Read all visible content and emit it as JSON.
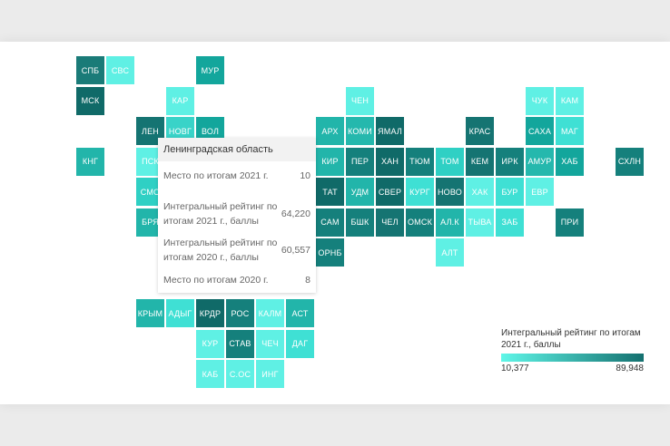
{
  "tiles": [
    {
      "label": "СПБ",
      "col": 0,
      "row": 0,
      "color": "#1a7b78"
    },
    {
      "label": "СВС",
      "col": 1,
      "row": 0,
      "color": "#5ff0e4"
    },
    {
      "label": "МУР",
      "col": 4,
      "row": 0,
      "color": "#13a69c"
    },
    {
      "label": "МСК",
      "col": 0,
      "row": 1,
      "color": "#106a68"
    },
    {
      "label": "КАР",
      "col": 3,
      "row": 1,
      "color": "#5ff0e4"
    },
    {
      "label": "ЧЕН",
      "col": 9,
      "row": 1,
      "color": "#5ff0e4"
    },
    {
      "label": "ЧУК",
      "col": 15,
      "row": 1,
      "color": "#5ff0e4"
    },
    {
      "label": "КАМ",
      "col": 16,
      "row": 1,
      "color": "#5ff0e4"
    },
    {
      "label": "ЛЕН",
      "col": 2,
      "row": 2,
      "color": "#157472"
    },
    {
      "label": "НОВГ",
      "col": 3,
      "row": 2,
      "color": "#39d3c8"
    },
    {
      "label": "ВОЛ",
      "col": 4,
      "row": 2,
      "color": "#13a69c"
    },
    {
      "label": "АРХ",
      "col": 8,
      "row": 2,
      "color": "#22b5aa"
    },
    {
      "label": "КОМИ",
      "col": 9,
      "row": 2,
      "color": "#25b8ad"
    },
    {
      "label": "ЯМАЛ",
      "col": 10,
      "row": 2,
      "color": "#106a68"
    },
    {
      "label": "КРАС",
      "col": 13,
      "row": 2,
      "color": "#157472"
    },
    {
      "label": "САХА",
      "col": 15,
      "row": 2,
      "color": "#13a69c"
    },
    {
      "label": "МАГ",
      "col": 16,
      "row": 2,
      "color": "#3fe0d4"
    },
    {
      "label": "КНГ",
      "col": 0,
      "row": 3,
      "color": "#22b5aa"
    },
    {
      "label": "ПСК",
      "col": 2,
      "row": 3,
      "color": "#5ff0e4"
    },
    {
      "label": "КИР",
      "col": 8,
      "row": 3,
      "color": "#22b5aa"
    },
    {
      "label": "ПЕР",
      "col": 9,
      "row": 3,
      "color": "#15807c"
    },
    {
      "label": "ХАН",
      "col": 10,
      "row": 3,
      "color": "#106a68"
    },
    {
      "label": "ТЮМ",
      "col": 11,
      "row": 3,
      "color": "#15807c"
    },
    {
      "label": "ТОМ",
      "col": 12,
      "row": 3,
      "color": "#2fd0c4"
    },
    {
      "label": "КЕМ",
      "col": 13,
      "row": 3,
      "color": "#157472"
    },
    {
      "label": "ИРК",
      "col": 14,
      "row": 3,
      "color": "#15807c"
    },
    {
      "label": "АМУР",
      "col": 15,
      "row": 3,
      "color": "#25b8ad"
    },
    {
      "label": "ХАБ",
      "col": 16,
      "row": 3,
      "color": "#13a69c"
    },
    {
      "label": "СХЛН",
      "col": 18,
      "row": 3,
      "color": "#15807c"
    },
    {
      "label": "СМО",
      "col": 2,
      "row": 4,
      "color": "#2fd0c4"
    },
    {
      "label": "ТАТ",
      "col": 8,
      "row": 4,
      "color": "#106a68"
    },
    {
      "label": "УДМ",
      "col": 9,
      "row": 4,
      "color": "#22b5aa"
    },
    {
      "label": "СВЕР",
      "col": 10,
      "row": 4,
      "color": "#106a68"
    },
    {
      "label": "КУРГ",
      "col": 11,
      "row": 4,
      "color": "#3fe0d4"
    },
    {
      "label": "НОВО",
      "col": 12,
      "row": 4,
      "color": "#157472"
    },
    {
      "label": "ХАК",
      "col": 13,
      "row": 4,
      "color": "#5ff0e4"
    },
    {
      "label": "БУР",
      "col": 14,
      "row": 4,
      "color": "#3fe0d4"
    },
    {
      "label": "ЕВР",
      "col": 15,
      "row": 4,
      "color": "#5ff0e4"
    },
    {
      "label": "БРЯ",
      "col": 2,
      "row": 5,
      "color": "#22b5aa"
    },
    {
      "label": "САМ",
      "col": 8,
      "row": 5,
      "color": "#15807c"
    },
    {
      "label": "БШК",
      "col": 9,
      "row": 5,
      "color": "#15807c"
    },
    {
      "label": "ЧЕЛ",
      "col": 10,
      "row": 5,
      "color": "#157472"
    },
    {
      "label": "ОМСК",
      "col": 11,
      "row": 5,
      "color": "#15807c"
    },
    {
      "label": "АЛ.К",
      "col": 12,
      "row": 5,
      "color": "#22b5aa"
    },
    {
      "label": "ТЫВА",
      "col": 13,
      "row": 5,
      "color": "#5ff0e4"
    },
    {
      "label": "ЗАБ",
      "col": 14,
      "row": 5,
      "color": "#3fe0d4"
    },
    {
      "label": "ПРИ",
      "col": 16,
      "row": 5,
      "color": "#15807c"
    },
    {
      "label": "ОРНБ",
      "col": 8,
      "row": 6,
      "color": "#15807c"
    },
    {
      "label": "АЛТ",
      "col": 12,
      "row": 6,
      "color": "#5ff0e4"
    },
    {
      "label": "КРЫМ",
      "col": 2,
      "row": 8,
      "color": "#22b5aa"
    },
    {
      "label": "АДЫГ",
      "col": 3,
      "row": 8,
      "color": "#3fe0d4"
    },
    {
      "label": "КРДР",
      "col": 4,
      "row": 8,
      "color": "#106a68"
    },
    {
      "label": "РОС",
      "col": 5,
      "row": 8,
      "color": "#15807c"
    },
    {
      "label": "КАЛМ",
      "col": 6,
      "row": 8,
      "color": "#5ff0e4"
    },
    {
      "label": "АСТ",
      "col": 7,
      "row": 8,
      "color": "#22b5aa"
    },
    {
      "label": "КУР",
      "col": 4,
      "row": 9,
      "color": "#5ff0e4"
    },
    {
      "label": "СТАВ",
      "col": 5,
      "row": 9,
      "color": "#15807c"
    },
    {
      "label": "ЧЕЧ",
      "col": 6,
      "row": 9,
      "color": "#5ff0e4"
    },
    {
      "label": "ДАГ",
      "col": 7,
      "row": 9,
      "color": "#3fe0d4"
    },
    {
      "label": "КАБ",
      "col": 4,
      "row": 10,
      "color": "#5ff0e4"
    },
    {
      "label": "С.ОС",
      "col": 5,
      "row": 10,
      "color": "#5ff0e4"
    },
    {
      "label": "ИНГ",
      "col": 6,
      "row": 10,
      "color": "#5ff0e4"
    }
  ],
  "tooltip": {
    "title": "Ленинградская область",
    "rows": [
      {
        "label": "Место по итогам 2021 г.",
        "value": "10"
      },
      {
        "label": "Интегральный рейтинг по итогам 2021 г., баллы",
        "value": "64,220"
      },
      {
        "label": "Интегральный рейтинг по итогам 2020 г., баллы",
        "value": "60,557"
      },
      {
        "label": "Место по итогам 2020 г.",
        "value": "8"
      }
    ]
  },
  "legend": {
    "title": "Интегральный рейтинг по итогам 2021 г., баллы",
    "min": "10,377",
    "max": "89,948",
    "color_min": "#5ff6e8",
    "color_max": "#14706f"
  }
}
